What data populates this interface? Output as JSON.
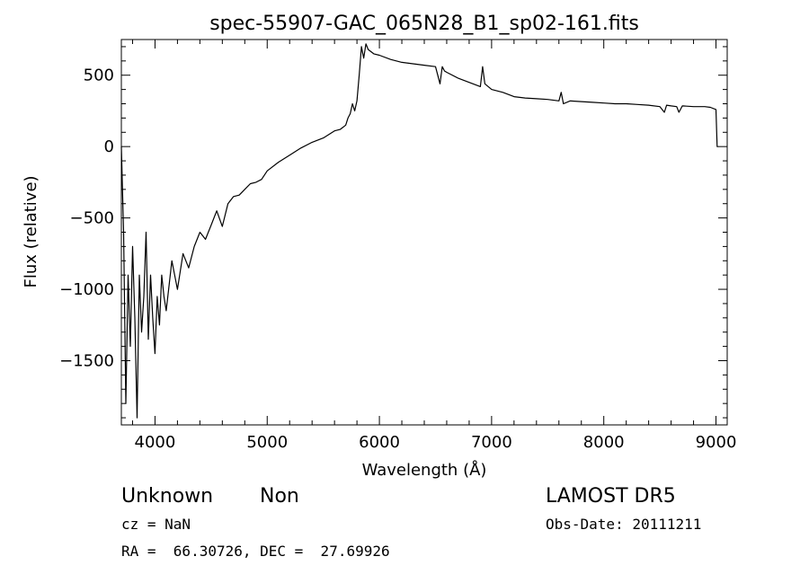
{
  "chart_data": {
    "type": "line",
    "title": "spec-55907-GAC_065N28_B1_sp02-161.fits",
    "xlabel": "Wavelength (Å)",
    "ylabel": "Flux (relative)",
    "xlim": [
      3700,
      9100
    ],
    "ylim": [
      -1950,
      750
    ],
    "xticks": [
      4000,
      5000,
      6000,
      7000,
      8000,
      9000
    ],
    "yticks": [
      -1500,
      -1000,
      -500,
      0,
      500
    ],
    "grid": false,
    "series": [
      {
        "x": [
          3700,
          3720,
          3740,
          3760,
          3780,
          3800,
          3820,
          3840,
          3860,
          3880,
          3900,
          3920,
          3940,
          3960,
          3980,
          4000,
          4020,
          4040,
          4060,
          4080,
          4100,
          4150,
          4200,
          4250,
          4300,
          4350,
          4400,
          4450,
          4500,
          4550,
          4600,
          4650,
          4700,
          4750,
          4800,
          4850,
          4900,
          4950,
          5000,
          5100,
          5200,
          5300,
          5400,
          5500,
          5600,
          5650,
          5700,
          5720,
          5740,
          5760,
          5780,
          5800,
          5820,
          5840,
          5860,
          5880,
          5900,
          5950,
          6000,
          6100,
          6200,
          6300,
          6400,
          6500,
          6540,
          6560,
          6580,
          6600,
          6700,
          6800,
          6900,
          6920,
          6940,
          7000,
          7100,
          7200,
          7300,
          7400,
          7500,
          7600,
          7620,
          7640,
          7700,
          7800,
          7900,
          8000,
          8100,
          8200,
          8300,
          8400,
          8500,
          8540,
          8560,
          8600,
          8650,
          8670,
          8700,
          8800,
          8900,
          8950,
          9000,
          9010,
          9020
        ],
        "y": [
          0,
          -600,
          -1800,
          -900,
          -1400,
          -700,
          -1200,
          -1900,
          -900,
          -1300,
          -1050,
          -600,
          -1350,
          -900,
          -1200,
          -1450,
          -1050,
          -1250,
          -900,
          -1050,
          -1150,
          -800,
          -1000,
          -750,
          -850,
          -700,
          -600,
          -650,
          -550,
          -450,
          -560,
          -400,
          -350,
          -340,
          -300,
          -260,
          -250,
          -230,
          -170,
          -110,
          -60,
          -10,
          30,
          60,
          110,
          120,
          150,
          200,
          230,
          300,
          250,
          320,
          500,
          700,
          620,
          720,
          680,
          650,
          640,
          610,
          590,
          580,
          570,
          560,
          440,
          560,
          530,
          520,
          480,
          450,
          420,
          560,
          440,
          400,
          380,
          350,
          340,
          335,
          330,
          320,
          380,
          300,
          320,
          315,
          310,
          305,
          300,
          300,
          295,
          290,
          280,
          240,
          290,
          285,
          280,
          240,
          285,
          280,
          280,
          275,
          260,
          0,
          0
        ]
      }
    ]
  },
  "footer": {
    "object_class": "Unknown",
    "subclass": "Non",
    "survey": "LAMOST DR5",
    "cz_text": "cz = NaN",
    "obs_date": "Obs-Date: 20111211",
    "radec": "RA =  66.30726, DEC =  27.69926"
  }
}
